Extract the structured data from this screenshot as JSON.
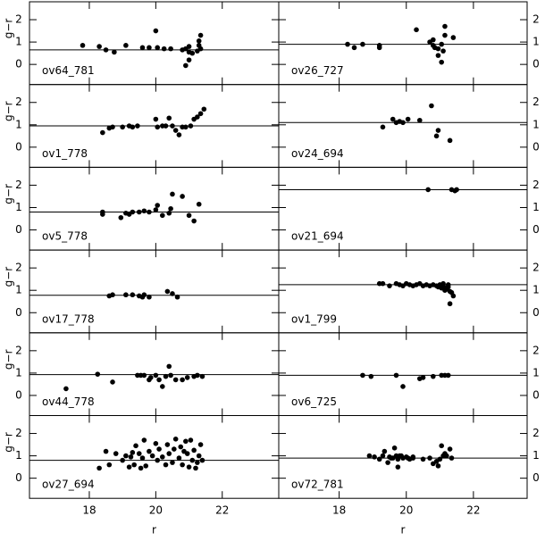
{
  "chart_data": [
    {
      "type": "scatter",
      "label": "ov64_781",
      "ylabel": "g−r",
      "ytick_side": "left",
      "color": "#000000",
      "hline": 0.65,
      "xlim": [
        16.2,
        23.7
      ],
      "ylim": [
        -0.9,
        2.8
      ],
      "xticks": [
        18,
        20,
        22
      ],
      "yticks": [
        0,
        1,
        2
      ],
      "x": [
        17.8,
        18.3,
        18.5,
        18.75,
        19.1,
        19.6,
        19.8,
        20.0,
        20.05,
        20.25,
        20.45,
        20.8,
        20.9,
        21.0,
        20.9,
        21.0,
        21.1,
        21.3,
        21.3,
        21.35,
        21.35,
        21.25,
        21.0
      ],
      "values": [
        0.85,
        0.8,
        0.65,
        0.55,
        0.85,
        0.75,
        0.75,
        1.5,
        0.75,
        0.7,
        0.7,
        0.65,
        0.7,
        0.55,
        -0.05,
        0.2,
        0.5,
        1.05,
        0.85,
        1.3,
        0.7,
        0.6,
        0.8
      ]
    },
    {
      "type": "scatter",
      "label": "ov26_727",
      "ytick_side": "right",
      "color": "#000000",
      "hline": 0.9,
      "xlim": [
        16.2,
        23.6
      ],
      "ylim": [
        -0.9,
        2.8
      ],
      "xticks": [
        18,
        20,
        22
      ],
      "yticks": [
        0,
        1,
        2
      ],
      "x": [
        18.25,
        18.45,
        18.7,
        19.2,
        19.2,
        20.3,
        20.7,
        20.8,
        20.8,
        20.85,
        20.95,
        20.95,
        21.1,
        21.05,
        21.15,
        21.15,
        21.4,
        21.05
      ],
      "values": [
        0.9,
        0.75,
        0.9,
        0.85,
        0.75,
        1.55,
        1.0,
        1.1,
        0.85,
        0.75,
        0.7,
        0.4,
        0.6,
        0.1,
        1.7,
        1.3,
        1.2,
        0.9
      ]
    },
    {
      "type": "scatter",
      "label": "ov1_778",
      "ylabel": "g−r",
      "ytick_side": "left",
      "color": "#000000",
      "hline": 0.95,
      "xlim": [
        16.2,
        23.7
      ],
      "ylim": [
        -0.9,
        2.8
      ],
      "xticks": [
        18,
        20,
        22
      ],
      "yticks": [
        0,
        1,
        2
      ],
      "x": [
        18.4,
        18.6,
        18.7,
        19.0,
        19.2,
        19.3,
        19.45,
        20.0,
        20.05,
        20.2,
        20.4,
        20.5,
        20.6,
        20.7,
        20.8,
        20.9,
        21.05,
        21.15,
        21.25,
        21.35,
        21.45,
        20.3
      ],
      "values": [
        0.65,
        0.85,
        0.9,
        0.9,
        0.95,
        0.9,
        0.95,
        1.25,
        0.9,
        0.95,
        1.3,
        0.95,
        0.75,
        0.55,
        0.9,
        0.9,
        0.95,
        1.25,
        1.35,
        1.5,
        1.7,
        0.95
      ]
    },
    {
      "type": "scatter",
      "label": "ov24_694",
      "ytick_side": "right",
      "color": "#000000",
      "hline": 1.1,
      "xlim": [
        16.2,
        23.6
      ],
      "ylim": [
        -0.9,
        2.8
      ],
      "xticks": [
        18,
        20,
        22
      ],
      "yticks": [
        0,
        1,
        2
      ],
      "x": [
        19.3,
        19.6,
        19.7,
        19.8,
        19.9,
        20.05,
        20.4,
        20.75,
        20.9,
        20.95,
        21.3
      ],
      "values": [
        0.9,
        1.25,
        1.1,
        1.15,
        1.1,
        1.25,
        1.2,
        1.85,
        0.5,
        0.75,
        0.3
      ]
    },
    {
      "type": "scatter",
      "label": "ov5_778",
      "ylabel": "g−r",
      "ytick_side": "left",
      "color": "#000000",
      "hline": 0.8,
      "xlim": [
        16.2,
        23.7
      ],
      "ylim": [
        -0.9,
        2.8
      ],
      "xticks": [
        18,
        20,
        22
      ],
      "yticks": [
        0,
        1,
        2
      ],
      "x": [
        18.4,
        18.4,
        18.95,
        19.1,
        19.3,
        19.5,
        19.65,
        19.8,
        20.0,
        20.2,
        20.4,
        20.45,
        20.5,
        20.8,
        21.0,
        21.15,
        21.3,
        20.05,
        19.2
      ],
      "values": [
        0.8,
        0.7,
        0.55,
        0.75,
        0.8,
        0.8,
        0.85,
        0.8,
        0.9,
        0.65,
        0.75,
        0.95,
        1.6,
        1.5,
        0.65,
        0.4,
        1.15,
        1.1,
        0.7
      ]
    },
    {
      "type": "scatter",
      "label": "ov21_694",
      "ytick_side": "right",
      "color": "#000000",
      "hline": 1.8,
      "xlim": [
        16.2,
        23.6
      ],
      "ylim": [
        -0.9,
        2.8
      ],
      "xticks": [
        18,
        20,
        22
      ],
      "yticks": [
        0,
        1,
        2
      ],
      "x": [
        20.65,
        21.35,
        21.45,
        21.5
      ],
      "values": [
        1.8,
        1.8,
        1.75,
        1.8
      ]
    },
    {
      "type": "scatter",
      "label": "ov17_778",
      "ylabel": "g−r",
      "ytick_side": "left",
      "color": "#000000",
      "hline": 0.78,
      "xlim": [
        16.2,
        23.7
      ],
      "ylim": [
        -0.9,
        2.8
      ],
      "xticks": [
        18,
        20,
        22
      ],
      "yticks": [
        0,
        1,
        2
      ],
      "x": [
        18.6,
        18.7,
        19.1,
        19.3,
        19.5,
        19.65,
        19.8,
        20.35,
        20.5,
        20.65,
        19.6
      ],
      "values": [
        0.75,
        0.8,
        0.8,
        0.8,
        0.75,
        0.8,
        0.7,
        0.95,
        0.85,
        0.7,
        0.7
      ]
    },
    {
      "type": "scatter",
      "label": "ov1_799",
      "ytick_side": "right",
      "color": "#000000",
      "hline": 1.25,
      "xlim": [
        16.2,
        23.6
      ],
      "ylim": [
        -0.9,
        2.8
      ],
      "xticks": [
        18,
        20,
        22
      ],
      "yticks": [
        0,
        1,
        2
      ],
      "x": [
        19.2,
        19.3,
        19.5,
        19.7,
        19.8,
        19.9,
        20.0,
        20.1,
        20.2,
        20.3,
        20.4,
        20.5,
        20.6,
        20.7,
        20.8,
        20.9,
        20.95,
        21.0,
        21.05,
        21.1,
        21.15,
        21.2,
        21.25,
        21.3,
        21.35,
        21.4,
        21.2,
        21.3,
        21.1,
        21.25
      ],
      "values": [
        1.3,
        1.3,
        1.2,
        1.3,
        1.25,
        1.2,
        1.3,
        1.25,
        1.2,
        1.25,
        1.3,
        1.2,
        1.25,
        1.2,
        1.25,
        1.2,
        1.15,
        1.25,
        1.1,
        1.2,
        1.0,
        1.1,
        1.25,
        0.95,
        0.9,
        0.75,
        1.05,
        0.4,
        1.3,
        1.15
      ]
    },
    {
      "type": "scatter",
      "label": "ov44_778",
      "ylabel": "g−r",
      "ytick_side": "left",
      "color": "#000000",
      "hline": 0.93,
      "xlim": [
        16.2,
        23.7
      ],
      "ylim": [
        -0.9,
        2.8
      ],
      "xticks": [
        18,
        20,
        22
      ],
      "yticks": [
        0,
        1,
        2
      ],
      "x": [
        17.3,
        18.25,
        18.7,
        19.45,
        19.55,
        19.65,
        19.85,
        20.0,
        20.1,
        20.2,
        20.3,
        20.4,
        20.45,
        20.6,
        20.8,
        20.95,
        21.15,
        21.25,
        21.4,
        19.8
      ],
      "values": [
        0.3,
        0.95,
        0.6,
        0.9,
        0.9,
        0.9,
        0.8,
        0.9,
        0.7,
        0.4,
        0.85,
        1.3,
        0.9,
        0.7,
        0.7,
        0.8,
        0.85,
        0.9,
        0.85,
        0.7
      ]
    },
    {
      "type": "scatter",
      "label": "ov6_725",
      "ytick_side": "right",
      "color": "#000000",
      "hline": 0.9,
      "xlim": [
        16.2,
        23.6
      ],
      "ylim": [
        -0.9,
        2.8
      ],
      "xticks": [
        18,
        20,
        22
      ],
      "yticks": [
        0,
        1,
        2
      ],
      "x": [
        18.7,
        18.95,
        19.7,
        19.9,
        20.4,
        20.5,
        20.8,
        21.05,
        21.15,
        21.25
      ],
      "values": [
        0.9,
        0.85,
        0.9,
        0.4,
        0.75,
        0.8,
        0.85,
        0.9,
        0.9,
        0.9
      ]
    },
    {
      "type": "scatter",
      "label": "ov27_694",
      "ylabel": "g−r",
      "xlabel": "r",
      "ytick_side": "left",
      "color": "#000000",
      "hline": 0.8,
      "xlim": [
        16.2,
        23.7
      ],
      "ylim": [
        -0.9,
        2.8
      ],
      "xticks": [
        18,
        20,
        22
      ],
      "yticks": [
        0,
        1,
        2
      ],
      "x": [
        18.3,
        18.5,
        18.6,
        18.8,
        19.0,
        19.1,
        19.2,
        19.3,
        19.35,
        19.4,
        19.5,
        19.6,
        19.65,
        19.7,
        19.8,
        19.9,
        20.0,
        20.05,
        20.1,
        20.2,
        20.3,
        20.35,
        20.4,
        20.5,
        20.55,
        20.6,
        20.7,
        20.75,
        20.8,
        20.9,
        20.95,
        21.0,
        21.05,
        21.1,
        21.15,
        21.2,
        21.3,
        21.35,
        21.4,
        19.25,
        19.55,
        20.85,
        21.25
      ],
      "values": [
        0.45,
        1.2,
        0.6,
        1.1,
        0.8,
        1.0,
        0.5,
        1.15,
        0.6,
        1.45,
        1.1,
        0.9,
        1.7,
        0.55,
        1.2,
        1.0,
        1.55,
        0.8,
        1.3,
        0.95,
        0.6,
        1.5,
        1.1,
        0.7,
        1.3,
        1.75,
        0.9,
        1.4,
        0.6,
        1.65,
        1.1,
        0.5,
        1.7,
        0.8,
        1.25,
        0.45,
        1.0,
        1.5,
        0.8,
        0.95,
        0.45,
        1.2,
        0.7
      ]
    },
    {
      "type": "scatter",
      "label": "ov72_781",
      "xlabel": "r",
      "ytick_side": "right",
      "color": "#000000",
      "hline": 0.9,
      "xlim": [
        16.2,
        23.6
      ],
      "ylim": [
        -0.9,
        2.8
      ],
      "xticks": [
        18,
        20,
        22
      ],
      "yticks": [
        0,
        1,
        2
      ],
      "x": [
        18.9,
        19.2,
        19.35,
        19.5,
        19.6,
        19.7,
        19.8,
        19.9,
        20.0,
        20.1,
        20.2,
        19.45,
        19.55,
        19.65,
        19.75,
        19.85,
        19.3,
        19.75,
        20.5,
        20.7,
        20.8,
        20.9,
        21.0,
        21.05,
        21.1,
        21.2,
        21.3,
        21.35,
        20.95,
        21.15,
        20.2,
        19.05,
        20.05
      ],
      "values": [
        1.0,
        0.85,
        1.2,
        0.95,
        0.9,
        1.0,
        1.0,
        0.9,
        0.95,
        0.85,
        0.95,
        0.7,
        0.9,
        1.35,
        0.85,
        1.0,
        1.0,
        0.5,
        0.85,
        0.9,
        0.65,
        0.75,
        0.85,
        1.45,
        1.0,
        1.0,
        1.3,
        0.9,
        0.55,
        1.1,
        0.9,
        0.95,
        0.9
      ]
    }
  ]
}
